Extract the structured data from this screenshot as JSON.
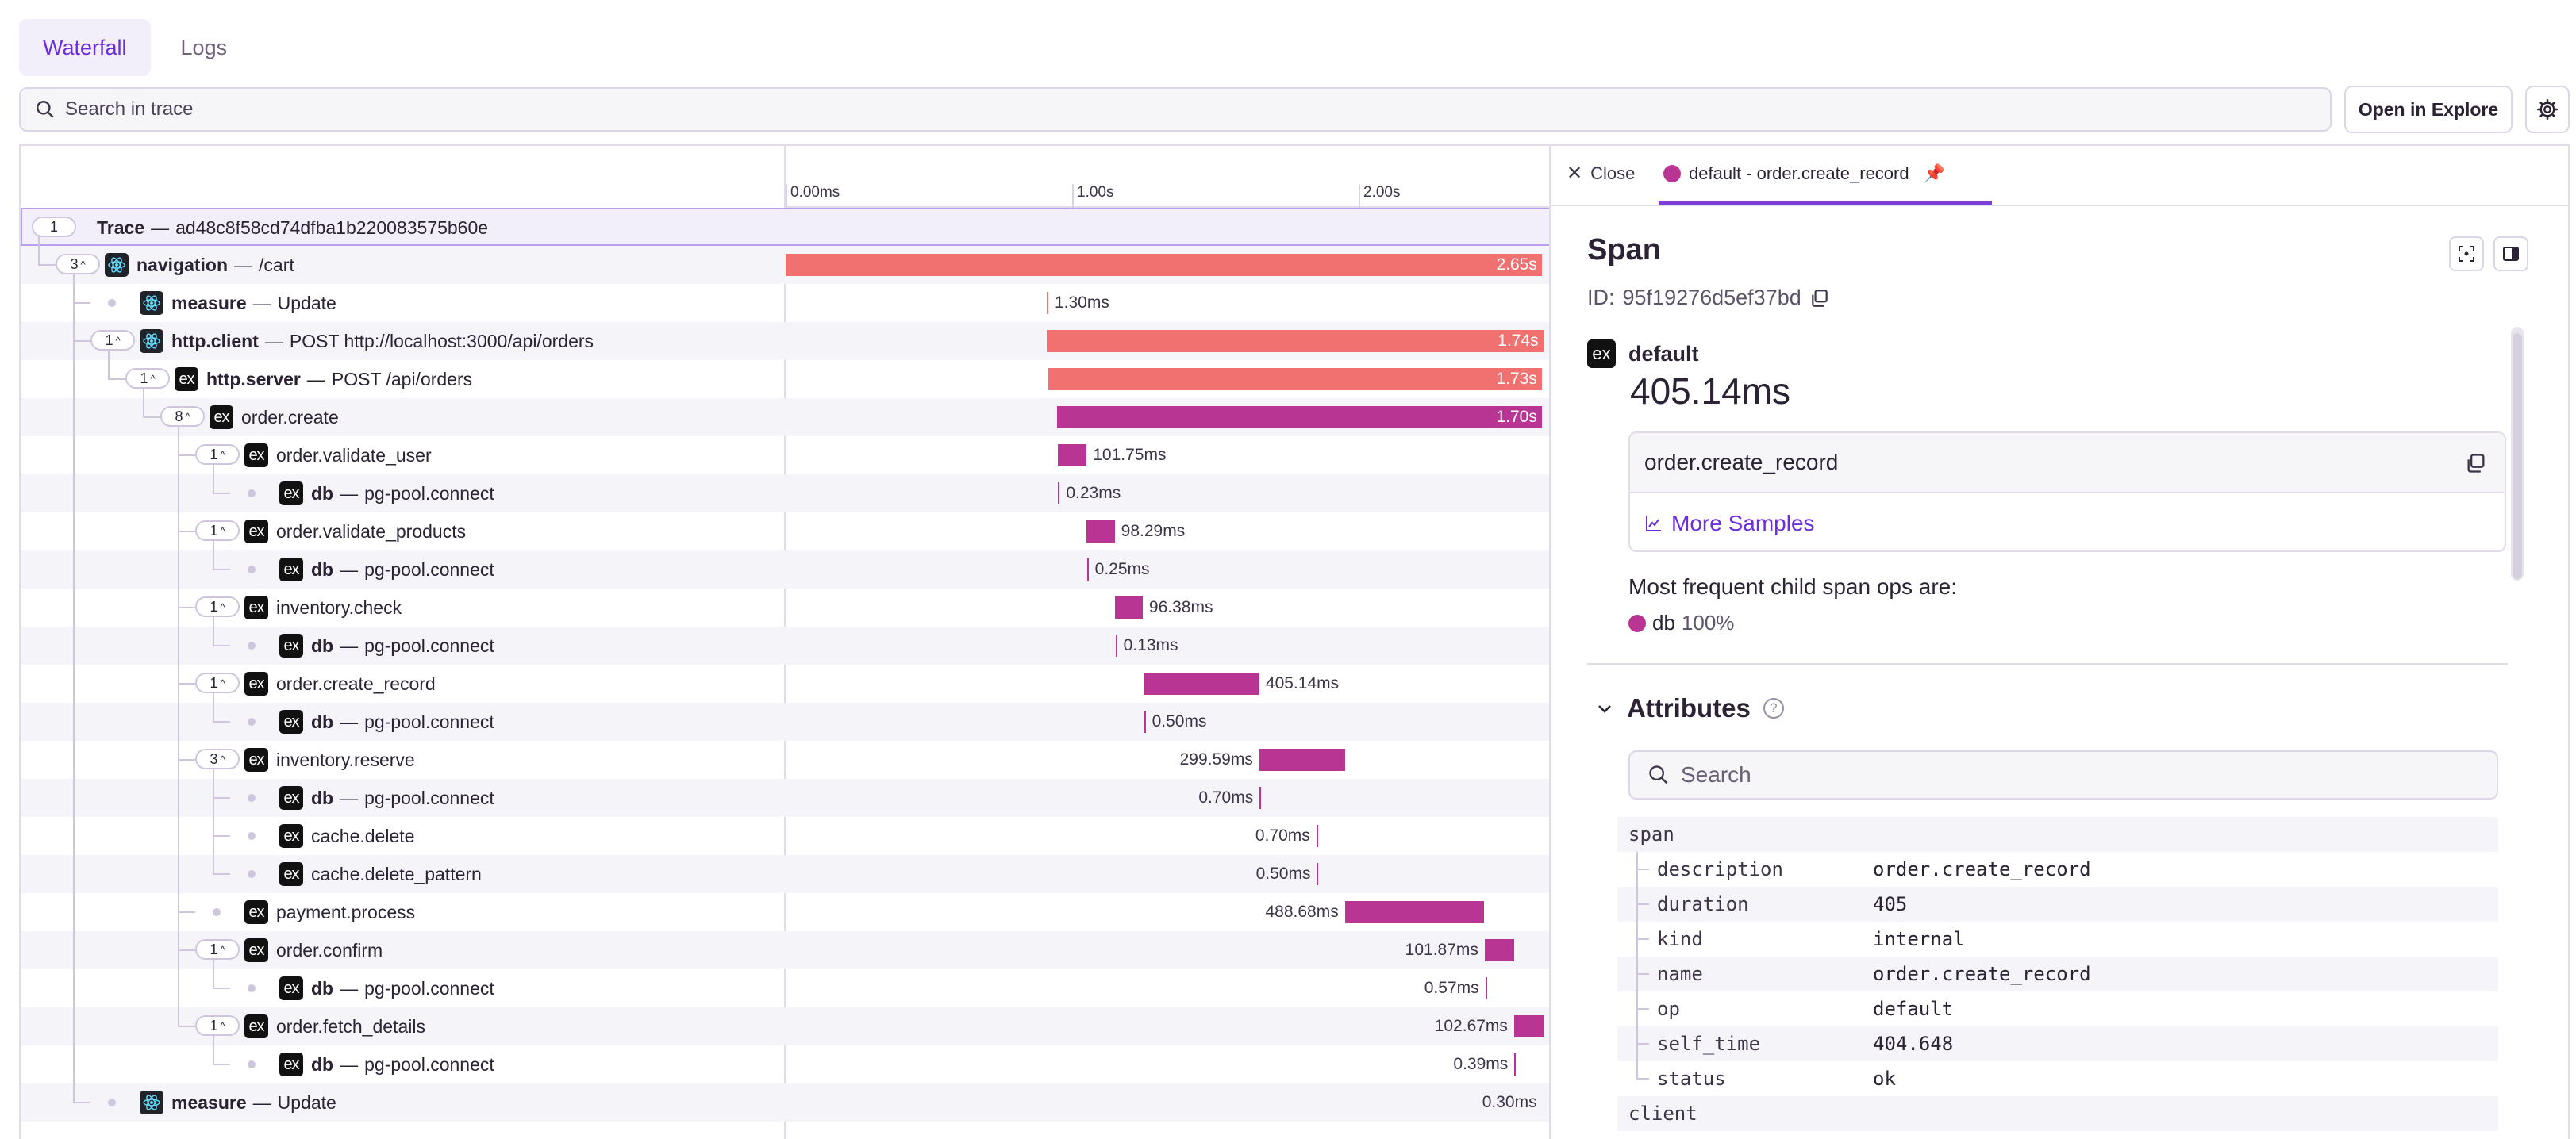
{
  "tabs": [
    {
      "label": "Waterfall",
      "active": true
    },
    {
      "label": "Logs",
      "active": false
    }
  ],
  "search": {
    "placeholder": "Search in trace",
    "value": ""
  },
  "actions": {
    "open_in_explore": "Open in Explore",
    "settings_icon": "gear-icon"
  },
  "timeline": {
    "ticks": [
      "0.00ms",
      "1.00s",
      "2.00s"
    ],
    "tick_values_s": [
      0,
      1.0,
      2.0
    ],
    "range_s": [
      0,
      2.67
    ]
  },
  "trace": {
    "count": "1",
    "label": "Trace",
    "trace_id": "ad48c8f58cd74dfba1b220083575b60e"
  },
  "spans": [
    {
      "depth": 1,
      "count": "3",
      "icon": "react-icon",
      "op": "navigation",
      "desc": "/cart",
      "start_s": 0.0,
      "duration_s": 2.65,
      "duration_label": "2.65s",
      "color": "#f17070",
      "label_inside": true
    },
    {
      "depth": 2,
      "count": "",
      "icon": "react-icon",
      "op": "measure",
      "desc": "Update",
      "start_s": 0.915,
      "duration_s": 0.0013,
      "duration_label": "1.30ms",
      "color": "#f17070",
      "label_inside": false
    },
    {
      "depth": 2,
      "count": "1",
      "icon": "react-icon",
      "op": "http.client",
      "desc": "POST http://localhost:3000/api/orders",
      "start_s": 0.915,
      "duration_s": 1.74,
      "duration_label": "1.74s",
      "color": "#f17070",
      "label_inside": true
    },
    {
      "depth": 3,
      "count": "1",
      "icon": "ex-icon",
      "op": "http.server",
      "desc": "POST /api/orders",
      "start_s": 0.92,
      "duration_s": 1.73,
      "duration_label": "1.73s",
      "color": "#f17070",
      "label_inside": true
    },
    {
      "depth": 4,
      "count": "8",
      "icon": "ex-icon",
      "op": "",
      "desc": "order.create",
      "start_s": 0.95,
      "duration_s": 1.7,
      "duration_label": "1.70s",
      "color": "#b83593",
      "label_inside": true
    },
    {
      "depth": 5,
      "count": "1",
      "icon": "ex-icon",
      "op": "",
      "desc": "order.validate_user",
      "start_s": 0.953,
      "duration_s": 0.10175,
      "duration_label": "101.75ms",
      "color": "#b83593",
      "label_inside": false
    },
    {
      "depth": 6,
      "count": "",
      "icon": "ex-icon",
      "op": "db",
      "desc": "pg-pool.connect",
      "start_s": 0.955,
      "duration_s": 0.00023,
      "duration_label": "0.23ms",
      "color": "#b83593",
      "label_inside": false
    },
    {
      "depth": 5,
      "count": "1",
      "icon": "ex-icon",
      "op": "",
      "desc": "order.validate_products",
      "start_s": 1.055,
      "duration_s": 0.09829,
      "duration_label": "98.29ms",
      "color": "#b83593",
      "label_inside": false
    },
    {
      "depth": 6,
      "count": "",
      "icon": "ex-icon",
      "op": "db",
      "desc": "pg-pool.connect",
      "start_s": 1.056,
      "duration_s": 0.00025,
      "duration_label": "0.25ms",
      "color": "#b83593",
      "label_inside": false
    },
    {
      "depth": 5,
      "count": "1",
      "icon": "ex-icon",
      "op": "",
      "desc": "inventory.check",
      "start_s": 1.155,
      "duration_s": 0.09638,
      "duration_label": "96.38ms",
      "color": "#b83593",
      "label_inside": false
    },
    {
      "depth": 6,
      "count": "",
      "icon": "ex-icon",
      "op": "db",
      "desc": "pg-pool.connect",
      "start_s": 1.156,
      "duration_s": 0.00013,
      "duration_label": "0.13ms",
      "color": "#b83593",
      "label_inside": false
    },
    {
      "depth": 5,
      "count": "1",
      "icon": "ex-icon",
      "op": "",
      "desc": "order.create_record",
      "start_s": 1.255,
      "duration_s": 0.40514,
      "duration_label": "405.14ms",
      "color": "#b83593",
      "label_inside": false
    },
    {
      "depth": 6,
      "count": "",
      "icon": "ex-icon",
      "op": "db",
      "desc": "pg-pool.connect",
      "start_s": 1.256,
      "duration_s": 0.0005,
      "duration_label": "0.50ms",
      "color": "#b83593",
      "label_inside": false
    },
    {
      "depth": 5,
      "count": "3",
      "icon": "ex-icon",
      "op": "",
      "desc": "inventory.reserve",
      "start_s": 1.66,
      "duration_s": 0.29959,
      "duration_label": "299.59ms",
      "color": "#b83593",
      "label_inside": false,
      "label_left": true
    },
    {
      "depth": 6,
      "count": "",
      "icon": "ex-icon",
      "op": "db",
      "desc": "pg-pool.connect",
      "start_s": 1.661,
      "duration_s": 0.0007,
      "duration_label": "0.70ms",
      "color": "#b83593",
      "label_inside": false,
      "label_left": true
    },
    {
      "depth": 6,
      "count": "",
      "icon": "ex-icon",
      "op": "",
      "desc": "cache.delete",
      "start_s": 1.86,
      "duration_s": 0.0007,
      "duration_label": "0.70ms",
      "color": "#b83593",
      "label_inside": false,
      "label_left": true
    },
    {
      "depth": 6,
      "count": "",
      "icon": "ex-icon",
      "op": "",
      "desc": "cache.delete_pattern",
      "start_s": 1.862,
      "duration_s": 0.0005,
      "duration_label": "0.50ms",
      "color": "#b83593",
      "label_inside": false,
      "label_left": true
    },
    {
      "depth": 5,
      "count": "",
      "icon": "ex-icon",
      "op": "",
      "desc": "payment.process",
      "start_s": 1.96,
      "duration_s": 0.48868,
      "duration_label": "488.68ms",
      "color": "#b83593",
      "label_inside": false,
      "label_left": true
    },
    {
      "depth": 5,
      "count": "1",
      "icon": "ex-icon",
      "op": "",
      "desc": "order.confirm",
      "start_s": 2.45,
      "duration_s": 0.10187,
      "duration_label": "101.87ms",
      "color": "#b83593",
      "label_inside": false,
      "label_left": true
    },
    {
      "depth": 6,
      "count": "",
      "icon": "ex-icon",
      "op": "db",
      "desc": "pg-pool.connect",
      "start_s": 2.452,
      "duration_s": 0.00057,
      "duration_label": "0.57ms",
      "color": "#b83593",
      "label_inside": false,
      "label_left": true
    },
    {
      "depth": 5,
      "count": "1",
      "icon": "ex-icon",
      "op": "",
      "desc": "order.fetch_details",
      "start_s": 2.553,
      "duration_s": 0.10267,
      "duration_label": "102.67ms",
      "color": "#b83593",
      "label_inside": false,
      "label_left": true
    },
    {
      "depth": 6,
      "count": "",
      "icon": "ex-icon",
      "op": "db",
      "desc": "pg-pool.connect",
      "start_s": 2.554,
      "duration_s": 0.00039,
      "duration_label": "0.39ms",
      "color": "#b83593",
      "label_inside": false,
      "label_left": true
    },
    {
      "depth": 2,
      "count": "",
      "icon": "react-icon",
      "op": "measure",
      "desc": "Update",
      "start_s": 2.655,
      "duration_s": 0.0003,
      "duration_label": "0.30ms",
      "color": "#b83593",
      "label_inside": false,
      "label_left": true
    }
  ],
  "detail": {
    "close_label": "Close",
    "tab_label": "default - order.create_record",
    "title": "Span",
    "id_label": "ID:",
    "id_value": "95f19276d5ef37bd",
    "op": "default",
    "duration": "405.14ms",
    "description": "order.create_record",
    "more_samples": "More Samples",
    "freq_title": "Most frequent child span ops are:",
    "freq_op": "db",
    "freq_pct": "100%",
    "attributes_title": "Attributes",
    "attr_search_placeholder": "Search",
    "attr_groups": [
      {
        "group": "span",
        "items": [
          {
            "key": "description",
            "value": "order.create_record"
          },
          {
            "key": "duration",
            "value": "405"
          },
          {
            "key": "kind",
            "value": "internal"
          },
          {
            "key": "name",
            "value": "order.create_record"
          },
          {
            "key": "op",
            "value": "default"
          },
          {
            "key": "self_time",
            "value": "404.648"
          },
          {
            "key": "status",
            "value": "ok"
          }
        ]
      },
      {
        "group": "client",
        "items": []
      }
    ]
  },
  "colors": {
    "accent": "#6c2ddb",
    "span_red": "#f17070",
    "span_magenta": "#b83593"
  }
}
